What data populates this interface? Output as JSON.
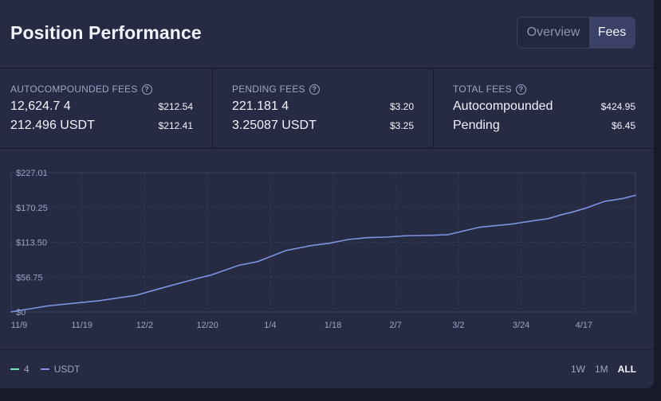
{
  "header": {
    "title": "Position Performance"
  },
  "tabs": [
    {
      "label": "Overview",
      "active": false
    },
    {
      "label": "Fees",
      "active": true
    }
  ],
  "stats": {
    "autocompounded": {
      "label": "AUTOCOMPOUNDED FEES",
      "rows": [
        {
          "text": "12,624.7 4",
          "amount": "$212.54"
        },
        {
          "text": "212.496 USDT",
          "amount": "$212.41"
        }
      ]
    },
    "pending": {
      "label": "PENDING FEES",
      "rows": [
        {
          "text": "221.181 4",
          "amount": "$3.20"
        },
        {
          "text": "3.25087 USDT",
          "amount": "$3.25"
        }
      ]
    },
    "total": {
      "label": "TOTAL FEES",
      "rows": [
        {
          "text": "Autocompounded",
          "amount": "$424.95"
        },
        {
          "text": "Pending",
          "amount": "$6.45"
        }
      ]
    }
  },
  "chart_data": {
    "type": "line",
    "y_ticks": [
      "$227.01",
      "$170.25",
      "$113.50",
      "$56.75",
      "$0"
    ],
    "y_tick_values": [
      227.01,
      170.25,
      113.5,
      56.75,
      0
    ],
    "ylim": [
      0,
      227.01
    ],
    "x_ticks": [
      "11/9",
      "11/19",
      "12/2",
      "12/20",
      "1/4",
      "1/18",
      "2/7",
      "3/2",
      "3/24",
      "4/17"
    ],
    "x": [
      0,
      0.06,
      0.1,
      0.14,
      0.2,
      0.245,
      0.3,
      0.32,
      0.365,
      0.395,
      0.44,
      0.47,
      0.48,
      0.51,
      0.54,
      0.57,
      0.6,
      0.63,
      0.68,
      0.7,
      0.75,
      0.8,
      0.84,
      0.86,
      0.88,
      0.9,
      0.92,
      0.95,
      0.98,
      1.0
    ],
    "series": [
      {
        "color": "#7b93e0",
        "values": [
          0,
          10,
          14,
          18,
          27,
          40,
          55,
          60,
          76,
          82,
          100,
          106,
          108,
          112,
          118,
          121,
          122,
          124,
          125,
          126,
          138,
          143,
          149,
          152,
          158,
          163,
          169,
          180,
          185,
          190
        ]
      }
    ],
    "grid": true
  },
  "legend": [
    {
      "label": "4",
      "color": "#6ee7a8"
    },
    {
      "label": "USDT",
      "color": "#7b93e0"
    }
  ],
  "ranges": [
    {
      "label": "1W",
      "active": false
    },
    {
      "label": "1M",
      "active": false
    },
    {
      "label": "ALL",
      "active": true
    }
  ]
}
